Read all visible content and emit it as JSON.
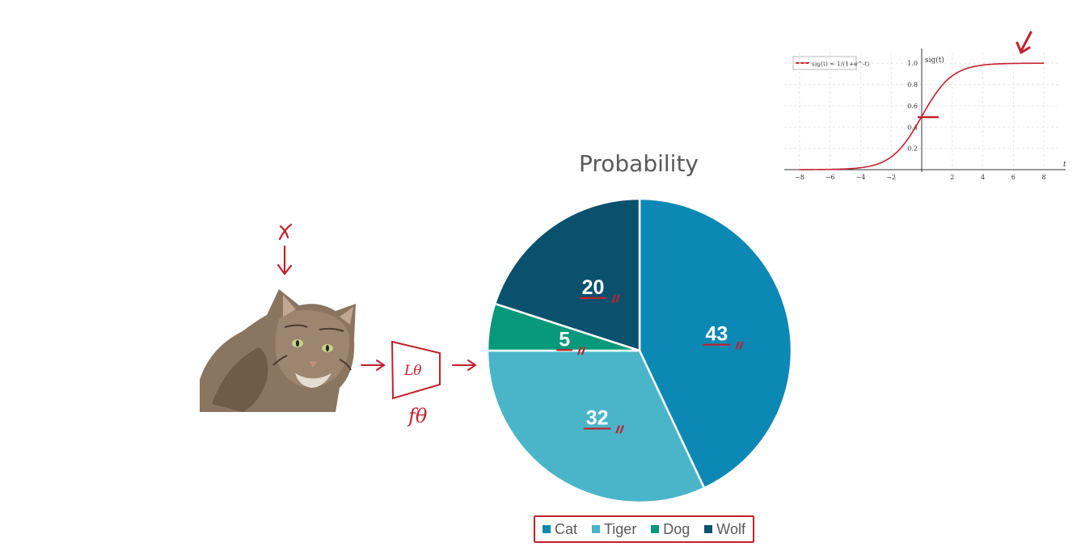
{
  "chart_data": [
    {
      "type": "pie",
      "title": "Probability",
      "categories": [
        "Cat",
        "Tiger",
        "Dog",
        "Wolf"
      ],
      "values": [
        43,
        32,
        5,
        20
      ],
      "colors": [
        "#0c88b4",
        "#4ab5c8",
        "#08987a",
        "#0a516d"
      ],
      "legend_position": "bottom"
    },
    {
      "type": "line",
      "series": [
        {
          "name": "sig(t) = 1/(1+e^-t)",
          "color": "#c0212d"
        }
      ],
      "x": [
        -8,
        -7,
        -6,
        -5,
        -4,
        -3,
        -2,
        -1,
        0,
        1,
        2,
        3,
        4,
        5,
        6,
        7,
        8
      ],
      "ylabel": "sig(t)",
      "xlabel": "t",
      "xlim": [
        -9,
        9
      ],
      "ylim": [
        0,
        1.1
      ],
      "xticks": [
        "−8",
        "−6",
        "−4",
        "−2",
        "2",
        "4",
        "6",
        "8"
      ],
      "yticks": [
        "0.2",
        "0.4",
        "0.6",
        "0.8",
        "1.0"
      ],
      "grid": true,
      "legend_position": "top-left"
    }
  ],
  "annotations": {
    "input_label": "x",
    "network_label": "Lθ",
    "function_label": "fθ",
    "cat_image": "cat-photo"
  },
  "colors": {
    "ink": "#c0212d"
  }
}
